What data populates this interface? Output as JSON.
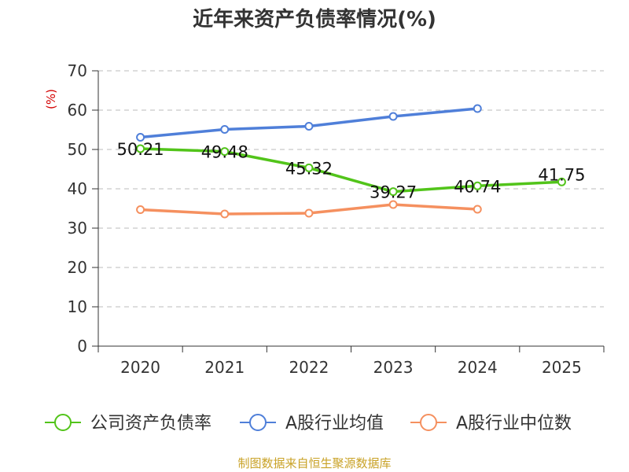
{
  "chart_data": {
    "type": "line",
    "title": "近年来资产负债率情况(%)",
    "ylabel": "(%)",
    "categories": [
      "2020",
      "2021",
      "2022",
      "2023",
      "2024",
      "2025"
    ],
    "ylim": [
      0,
      70
    ],
    "yticks": [
      0,
      10,
      20,
      30,
      40,
      50,
      60,
      70
    ],
    "grid": true,
    "legend_position": "bottom",
    "series": [
      {
        "name": "公司资产负债率",
        "color": "#52c41a",
        "values": [
          50.21,
          49.48,
          45.32,
          39.27,
          40.74,
          41.75
        ],
        "data_labels": [
          "50.21",
          "49.48",
          "45.32",
          "39.27",
          "40.74",
          "41.75"
        ]
      },
      {
        "name": "A股行业均值",
        "color": "#4f7fd9",
        "values": [
          53.1,
          55.1,
          55.9,
          58.4,
          60.4,
          null
        ]
      },
      {
        "name": "A股行业中位数",
        "color": "#f5905f",
        "values": [
          34.7,
          33.6,
          33.8,
          36.0,
          34.8,
          null
        ]
      }
    ]
  },
  "source_note": "制图数据来自恒生聚源数据库"
}
